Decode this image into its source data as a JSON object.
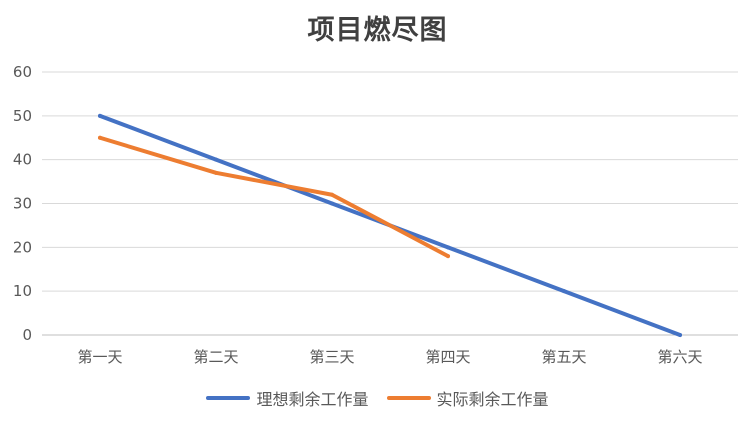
{
  "chart_data": {
    "type": "line",
    "title": "项目燃尽图",
    "categories": [
      "第一天",
      "第二天",
      "第三天",
      "第四天",
      "第五天",
      "第六天"
    ],
    "series": [
      {
        "name": "理想剩余工作量",
        "color": "#4472C4",
        "values": [
          50,
          40,
          30,
          20,
          10,
          0
        ]
      },
      {
        "name": "实际剩余工作量",
        "color": "#ED7D31",
        "values": [
          45,
          37,
          32,
          18,
          null,
          null
        ]
      }
    ],
    "ylim": [
      0,
      60
    ],
    "yticks": [
      0,
      10,
      20,
      30,
      40,
      50,
      60
    ],
    "grid": true,
    "legend": "bottom",
    "xlabel": "",
    "ylabel": ""
  }
}
